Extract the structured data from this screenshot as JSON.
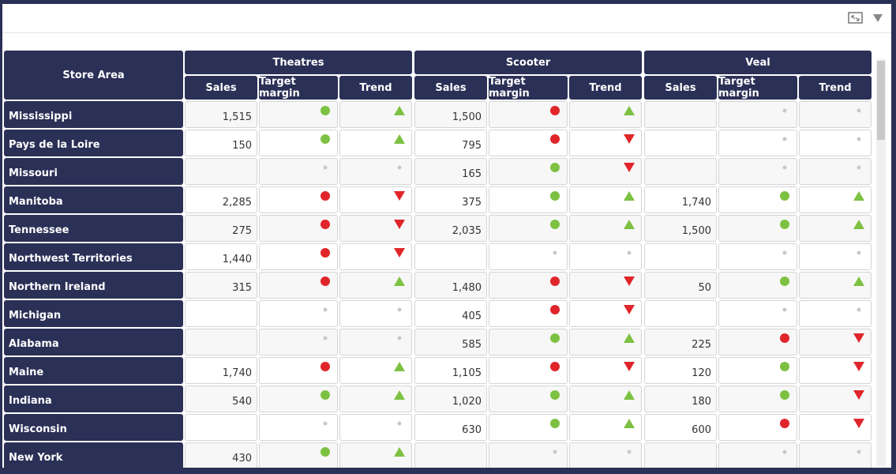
{
  "table": {
    "header": "Store Area",
    "groups": [
      {
        "name": "Theatres",
        "columns": [
          "Sales",
          "Target margin",
          "Trend"
        ]
      },
      {
        "name": "Scooter",
        "columns": [
          "Sales",
          "Target margin",
          "Trend"
        ]
      },
      {
        "name": "Veal",
        "columns": [
          "Sales",
          "Target margin",
          "Trend"
        ]
      }
    ],
    "status_colors": {
      "good": "#7dc142",
      "bad": "#e0262b"
    },
    "rows": [
      {
        "label": "Mississippi",
        "cells": [
          {
            "sales": "1,515",
            "margin": "good",
            "trend": "up"
          },
          {
            "sales": "1,500",
            "margin": "bad",
            "trend": "up"
          },
          {
            "sales": null,
            "margin": null,
            "trend": null
          }
        ]
      },
      {
        "label": "Pays de la Loire",
        "cells": [
          {
            "sales": "150",
            "margin": "good",
            "trend": "up"
          },
          {
            "sales": "795",
            "margin": "bad",
            "trend": "down"
          },
          {
            "sales": null,
            "margin": null,
            "trend": null
          }
        ]
      },
      {
        "label": "Missouri",
        "cells": [
          {
            "sales": null,
            "margin": null,
            "trend": null
          },
          {
            "sales": "165",
            "margin": "good",
            "trend": "down"
          },
          {
            "sales": null,
            "margin": null,
            "trend": null
          }
        ]
      },
      {
        "label": "Manitoba",
        "cells": [
          {
            "sales": "2,285",
            "margin": "bad",
            "trend": "down"
          },
          {
            "sales": "375",
            "margin": "good",
            "trend": "up"
          },
          {
            "sales": "1,740",
            "margin": "good",
            "trend": "up"
          }
        ]
      },
      {
        "label": "Tennessee",
        "cells": [
          {
            "sales": "275",
            "margin": "bad",
            "trend": "down"
          },
          {
            "sales": "2,035",
            "margin": "good",
            "trend": "up"
          },
          {
            "sales": "1,500",
            "margin": "good",
            "trend": "up"
          }
        ]
      },
      {
        "label": "Northwest Territories",
        "cells": [
          {
            "sales": "1,440",
            "margin": "bad",
            "trend": "down"
          },
          {
            "sales": null,
            "margin": null,
            "trend": null
          },
          {
            "sales": null,
            "margin": null,
            "trend": null
          }
        ]
      },
      {
        "label": "Northern Ireland",
        "cells": [
          {
            "sales": "315",
            "margin": "bad",
            "trend": "up"
          },
          {
            "sales": "1,480",
            "margin": "bad",
            "trend": "down"
          },
          {
            "sales": "50",
            "margin": "good",
            "trend": "up"
          }
        ]
      },
      {
        "label": "Michigan",
        "cells": [
          {
            "sales": null,
            "margin": null,
            "trend": null
          },
          {
            "sales": "405",
            "margin": "bad",
            "trend": "down"
          },
          {
            "sales": null,
            "margin": null,
            "trend": null
          }
        ]
      },
      {
        "label": "Alabama",
        "cells": [
          {
            "sales": null,
            "margin": null,
            "trend": null
          },
          {
            "sales": "585",
            "margin": "good",
            "trend": "up"
          },
          {
            "sales": "225",
            "margin": "bad",
            "trend": "down"
          }
        ]
      },
      {
        "label": "Maine",
        "cells": [
          {
            "sales": "1,740",
            "margin": "bad",
            "trend": "up"
          },
          {
            "sales": "1,105",
            "margin": "bad",
            "trend": "down"
          },
          {
            "sales": "120",
            "margin": "good",
            "trend": "down"
          }
        ]
      },
      {
        "label": "Indiana",
        "cells": [
          {
            "sales": "540",
            "margin": "good",
            "trend": "up"
          },
          {
            "sales": "1,020",
            "margin": "good",
            "trend": "up"
          },
          {
            "sales": "180",
            "margin": "good",
            "trend": "down"
          }
        ]
      },
      {
        "label": "Wisconsin",
        "cells": [
          {
            "sales": null,
            "margin": null,
            "trend": null
          },
          {
            "sales": "630",
            "margin": "good",
            "trend": "up"
          },
          {
            "sales": "600",
            "margin": "bad",
            "trend": "down"
          }
        ]
      },
      {
        "label": "New York",
        "cells": [
          {
            "sales": "430",
            "margin": "good",
            "trend": "up"
          },
          {
            "sales": null,
            "margin": null,
            "trend": null
          },
          {
            "sales": null,
            "margin": null,
            "trend": null
          }
        ]
      }
    ]
  }
}
